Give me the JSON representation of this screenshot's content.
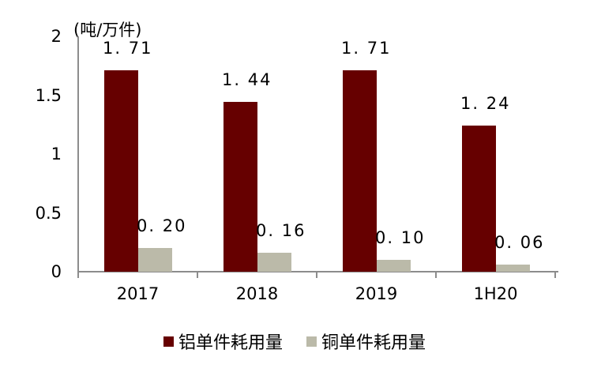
{
  "chart_data": {
    "type": "bar",
    "title": "",
    "unit_label": "(吨/万件)",
    "xlabel": "",
    "ylabel": "吨/万件",
    "ylim": [
      0,
      2
    ],
    "yticks": [
      "0",
      "0.5",
      "1",
      "1.5",
      "2"
    ],
    "grid": false,
    "legend_position": "bottom",
    "categories": [
      "2017",
      "2018",
      "2019",
      "1H20"
    ],
    "series": [
      {
        "name": "铝单件耗用量",
        "color": "#660000",
        "values": [
          1.71,
          1.44,
          1.71,
          1.24
        ],
        "labels": [
          "1.71",
          "1.44",
          "1.71",
          "1.24"
        ]
      },
      {
        "name": "铜单件耗用量",
        "color": "#bbbaa9",
        "values": [
          0.2,
          0.16,
          0.1,
          0.06
        ],
        "labels": [
          "0.20",
          "0.16",
          "0.10",
          "0.06"
        ]
      }
    ]
  }
}
